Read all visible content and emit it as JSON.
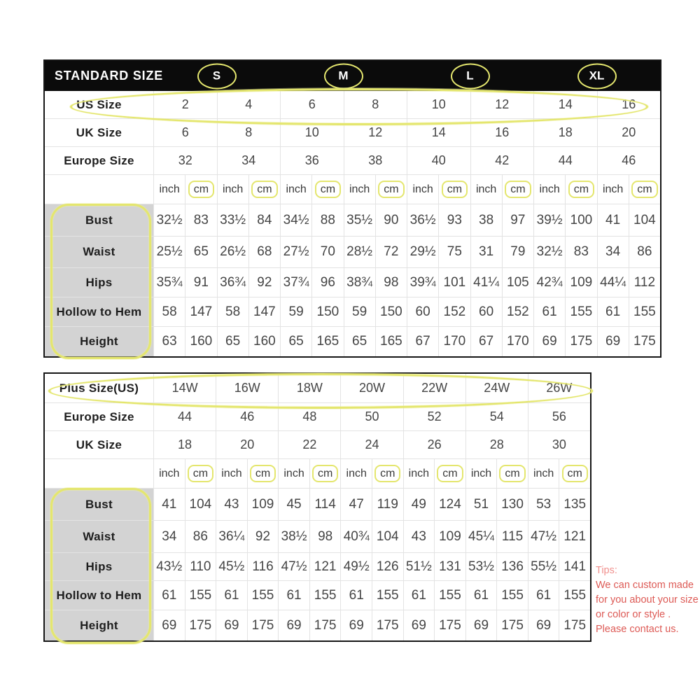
{
  "annotation_color": "#e4e66e",
  "table1": {
    "header": {
      "title": "STANDARD SIZE",
      "sizes": [
        "S",
        "M",
        "L",
        "XL"
      ]
    },
    "size_rows": [
      {
        "label": "US Size",
        "values": [
          "2",
          "4",
          "6",
          "8",
          "10",
          "12",
          "14",
          "16"
        ],
        "highlight": true
      },
      {
        "label": "UK Size",
        "values": [
          "6",
          "8",
          "10",
          "12",
          "14",
          "16",
          "18",
          "20"
        ],
        "highlight": false
      },
      {
        "label": "Europe Size",
        "values": [
          "32",
          "34",
          "36",
          "38",
          "40",
          "42",
          "44",
          "46"
        ],
        "highlight": false
      }
    ],
    "unit_row": {
      "inch": "inch",
      "cm": "cm",
      "pairs": 8
    },
    "measure_rows": [
      {
        "label": "Bust",
        "values": [
          "32½",
          "83",
          "33½",
          "84",
          "34½",
          "88",
          "35½",
          "90",
          "36½",
          "93",
          "38",
          "97",
          "39½",
          "100",
          "41",
          "104"
        ]
      },
      {
        "label": "Waist",
        "values": [
          "25½",
          "65",
          "26½",
          "68",
          "27½",
          "70",
          "28½",
          "72",
          "29½",
          "75",
          "31",
          "79",
          "32½",
          "83",
          "34",
          "86"
        ]
      },
      {
        "label": "Hips",
        "values": [
          "35¾",
          "91",
          "36¾",
          "92",
          "37¾",
          "96",
          "38¾",
          "98",
          "39¾",
          "101",
          "41¼",
          "105",
          "42¾",
          "109",
          "44¼",
          "112"
        ]
      },
      {
        "label": "Hollow to Hem",
        "values": [
          "58",
          "147",
          "58",
          "147",
          "59",
          "150",
          "59",
          "150",
          "60",
          "152",
          "60",
          "152",
          "61",
          "155",
          "61",
          "155"
        ]
      },
      {
        "label": "Height",
        "values": [
          "63",
          "160",
          "65",
          "160",
          "65",
          "165",
          "65",
          "165",
          "67",
          "170",
          "67",
          "170",
          "69",
          "175",
          "69",
          "175"
        ]
      }
    ]
  },
  "table2": {
    "size_rows": [
      {
        "label": "Plus Size(US)",
        "values": [
          "14W",
          "16W",
          "18W",
          "20W",
          "22W",
          "24W",
          "26W"
        ],
        "highlight": true
      },
      {
        "label": "Europe Size",
        "values": [
          "44",
          "46",
          "48",
          "50",
          "52",
          "54",
          "56"
        ],
        "highlight": false
      },
      {
        "label": "UK Size",
        "values": [
          "18",
          "20",
          "22",
          "24",
          "26",
          "28",
          "30"
        ],
        "highlight": false
      }
    ],
    "unit_row": {
      "inch": "inch",
      "cm": "cm",
      "pairs": 7
    },
    "measure_rows": [
      {
        "label": "Bust",
        "values": [
          "41",
          "104",
          "43",
          "109",
          "45",
          "114",
          "47",
          "119",
          "49",
          "124",
          "51",
          "130",
          "53",
          "135"
        ]
      },
      {
        "label": "Waist",
        "values": [
          "34",
          "86",
          "36¼",
          "92",
          "38½",
          "98",
          "40¾",
          "104",
          "43",
          "109",
          "45¼",
          "115",
          "47½",
          "121"
        ]
      },
      {
        "label": "Hips",
        "values": [
          "43½",
          "110",
          "45½",
          "116",
          "47½",
          "121",
          "49½",
          "126",
          "51½",
          "131",
          "53½",
          "136",
          "55½",
          "141"
        ]
      },
      {
        "label": "Hollow to Hem",
        "values": [
          "61",
          "155",
          "61",
          "155",
          "61",
          "155",
          "61",
          "155",
          "61",
          "155",
          "61",
          "155",
          "61",
          "155"
        ]
      },
      {
        "label": "Height",
        "values": [
          "69",
          "175",
          "69",
          "175",
          "69",
          "175",
          "69",
          "175",
          "69",
          "175",
          "69",
          "175",
          "69",
          "175"
        ]
      }
    ]
  },
  "tips": {
    "title": "Tips:",
    "lines": [
      "We can custom made",
      "for you about your size",
      "or color or style .",
      "Please contact us."
    ],
    "color": "#dd5a55"
  }
}
